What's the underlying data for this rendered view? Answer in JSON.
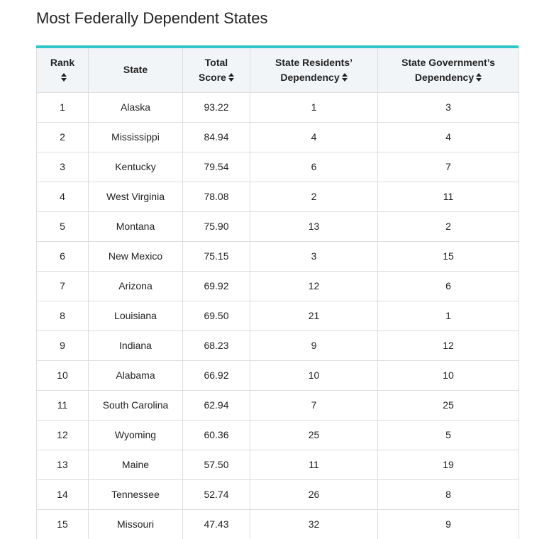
{
  "title": "Most Federally Dependent States",
  "colors": {
    "accent_border": "#2ec6c8",
    "header_bg": "#f2f5f8",
    "grid": "#dddddd"
  },
  "table": {
    "headers": {
      "rank": "Rank",
      "state": "State",
      "score_line1": "Total",
      "score_line2": "Score",
      "residents_line1": "State Residents’",
      "residents_line2": "Dependency",
      "government_line1": "State Government’s",
      "government_line2": "Dependency"
    },
    "sort_icon": "sort-up-down-icon",
    "rows": [
      {
        "rank": "1",
        "state": "Alaska",
        "score": "93.22",
        "residents": "1",
        "government": "3"
      },
      {
        "rank": "2",
        "state": "Mississippi",
        "score": "84.94",
        "residents": "4",
        "government": "4"
      },
      {
        "rank": "3",
        "state": "Kentucky",
        "score": "79.54",
        "residents": "6",
        "government": "7"
      },
      {
        "rank": "4",
        "state": "West Virginia",
        "score": "78.08",
        "residents": "2",
        "government": "11"
      },
      {
        "rank": "5",
        "state": "Montana",
        "score": "75.90",
        "residents": "13",
        "government": "2"
      },
      {
        "rank": "6",
        "state": "New Mexico",
        "score": "75.15",
        "residents": "3",
        "government": "15"
      },
      {
        "rank": "7",
        "state": "Arizona",
        "score": "69.92",
        "residents": "12",
        "government": "6"
      },
      {
        "rank": "8",
        "state": "Louisiana",
        "score": "69.50",
        "residents": "21",
        "government": "1"
      },
      {
        "rank": "9",
        "state": "Indiana",
        "score": "68.23",
        "residents": "9",
        "government": "12"
      },
      {
        "rank": "10",
        "state": "Alabama",
        "score": "66.92",
        "residents": "10",
        "government": "10"
      },
      {
        "rank": "11",
        "state": "South Carolina",
        "score": "62.94",
        "residents": "7",
        "government": "25"
      },
      {
        "rank": "12",
        "state": "Wyoming",
        "score": "60.36",
        "residents": "25",
        "government": "5"
      },
      {
        "rank": "13",
        "state": "Maine",
        "score": "57.50",
        "residents": "11",
        "government": "19"
      },
      {
        "rank": "14",
        "state": "Tennessee",
        "score": "52.74",
        "residents": "26",
        "government": "8"
      },
      {
        "rank": "15",
        "state": "Missouri",
        "score": "47.43",
        "residents": "32",
        "government": "9"
      }
    ]
  }
}
